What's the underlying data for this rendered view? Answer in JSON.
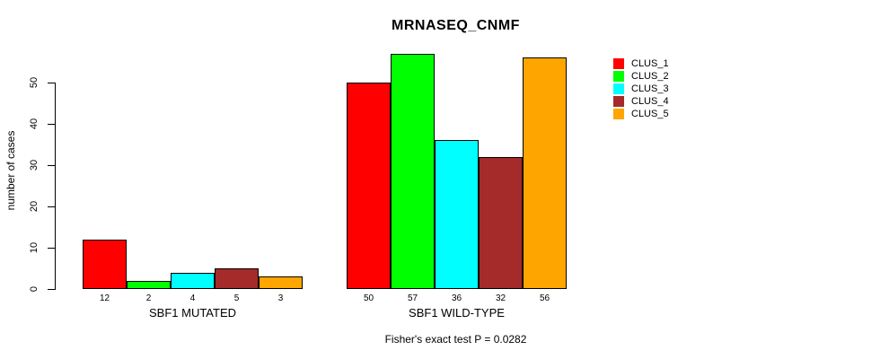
{
  "chart_data": {
    "type": "bar",
    "title": "MRNASEQ_CNMF",
    "ylabel": "number of cases",
    "xlabel": "",
    "ylim": [
      0,
      57
    ],
    "yticks": [
      0,
      10,
      20,
      30,
      40,
      50
    ],
    "categories": [
      "SBF1 MUTATED",
      "SBF1 WILD-TYPE"
    ],
    "series": [
      {
        "name": "CLUS_1",
        "color": "#ff0000",
        "values": [
          12,
          50
        ]
      },
      {
        "name": "CLUS_2",
        "color": "#00ff00",
        "values": [
          2,
          57
        ]
      },
      {
        "name": "CLUS_3",
        "color": "#00ffff",
        "values": [
          4,
          36
        ]
      },
      {
        "name": "CLUS_4",
        "color": "#a52a2a",
        "values": [
          5,
          32
        ]
      },
      {
        "name": "CLUS_5",
        "color": "#ffa500",
        "values": [
          3,
          56
        ]
      }
    ],
    "bar_value_labels": true,
    "legend_position": "right",
    "grid": false,
    "annotation": "Fisher's exact test P = 0.0282",
    "axis_color": "#000000",
    "text_color": "#000000",
    "background": "#ffffff"
  }
}
